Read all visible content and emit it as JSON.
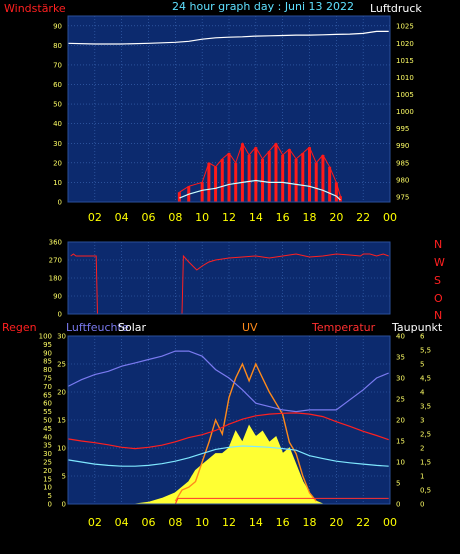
{
  "header": {
    "title": "24 hour graph day : Juni 13 2022",
    "left_label": "Windstärke",
    "right_label": "Luftdruck"
  },
  "legend_bottom": {
    "regen": "Regen",
    "luftfeuchte": "Luftfeuchte",
    "solar": "Solar",
    "uv": "UV",
    "temperatur": "Temperatur",
    "taupunkt": "Taupunkt"
  },
  "direction_labels": [
    "N",
    "W",
    "S",
    "O",
    "N"
  ],
  "colors": {
    "plot_bg": "#0c2a6e",
    "grid": "#3e6bb8",
    "pressure": "#ffffff",
    "wind_gust": "#ff1a1a",
    "wind_speed": "#ccffff",
    "direction": "#ff2020",
    "humidity": "#7a7af0",
    "solar": "#ffff33",
    "uv": "#ff8a1a",
    "temperature": "#ff2020",
    "dewpoint": "#7fe8ff",
    "rain": "#ff3030"
  },
  "chart_data": [
    {
      "type": "line",
      "title": "24 hour graph day : Juni 13 2022",
      "x_ticks": [
        "02",
        "04",
        "06",
        "08",
        "10",
        "12",
        "14",
        "16",
        "18",
        "20",
        "22",
        "00"
      ],
      "y_left": {
        "label": "Windstärke",
        "ticks": [
          0,
          10,
          20,
          30,
          40,
          50,
          60,
          70,
          80,
          90
        ],
        "lim": [
          0,
          95
        ]
      },
      "y_right": {
        "label": "Luftdruck",
        "ticks": [
          975,
          980,
          985,
          990,
          995,
          1000,
          1005,
          1010,
          1015,
          1020,
          1025
        ],
        "lim": [
          973.5,
          1028
        ]
      },
      "series": [
        {
          "axis": "right",
          "x": [
            0,
            2,
            4,
            6,
            8,
            9,
            10,
            11,
            12,
            13,
            14,
            15,
            16,
            17,
            18,
            19,
            20,
            21,
            22,
            23,
            23.9
          ],
          "y": [
            1020,
            1019.8,
            1019.8,
            1020,
            1020.3,
            1020.6,
            1021.2,
            1021.6,
            1021.8,
            1021.9,
            1022.1,
            1022.2,
            1022.3,
            1022.4,
            1022.4,
            1022.5,
            1022.6,
            1022.7,
            1022.9,
            1023.5,
            1023.5
          ]
        },
        {
          "axis": "left",
          "x": [
            8.3,
            9,
            10,
            10.5,
            11,
            11.5,
            12,
            12.5,
            13,
            13.5,
            14,
            14.5,
            15,
            15.5,
            16,
            16.5,
            17,
            17.5,
            18,
            18.5,
            19,
            19.5,
            20,
            20.3
          ],
          "y": [
            5,
            8,
            10,
            20,
            18,
            22,
            25,
            20,
            30,
            24,
            28,
            22,
            26,
            30,
            24,
            27,
            22,
            25,
            28,
            20,
            24,
            18,
            10,
            3
          ]
        },
        {
          "axis": "left",
          "x": [
            8.3,
            9,
            10,
            11,
            12,
            13,
            14,
            15,
            16,
            17,
            18,
            19,
            20,
            20.3
          ],
          "y": [
            2,
            4,
            6,
            7,
            9,
            10,
            11,
            10,
            10,
            9,
            8,
            6,
            3,
            1
          ]
        }
      ]
    },
    {
      "type": "line",
      "y_left": {
        "ticks": [
          0,
          90,
          180,
          270,
          360
        ],
        "lim": [
          0,
          360
        ]
      },
      "y_right": {
        "ticks": [
          "N",
          "W",
          "S",
          "O",
          "N"
        ]
      },
      "series": [
        {
          "x": [
            0.2,
            0.4,
            0.6,
            1.0,
            1.8,
            2.1,
            2.2,
            8.5,
            8.6,
            9.0,
            9.6,
            10.0,
            10.5,
            11.0,
            12.0,
            13.0,
            14.0,
            15.0,
            16.0,
            17.0,
            18.0,
            19.0,
            20.0,
            21.0,
            21.8,
            22.0,
            22.5,
            23.0,
            23.5,
            23.9
          ],
          "y": [
            290,
            300,
            290,
            290,
            290,
            290,
            0,
            0,
            290,
            260,
            220,
            240,
            260,
            270,
            280,
            285,
            290,
            280,
            290,
            300,
            285,
            290,
            300,
            295,
            290,
            300,
            300,
            290,
            300,
            290
          ]
        }
      ]
    },
    {
      "type": "line",
      "x_ticks": [
        "02",
        "04",
        "06",
        "08",
        "10",
        "12",
        "14",
        "16",
        "18",
        "20",
        "22",
        "00"
      ],
      "y_left": {
        "ticks": [
          0,
          5,
          10,
          15,
          20,
          25,
          30,
          35,
          40,
          45,
          50,
          55,
          60,
          65,
          70,
          75,
          80,
          85,
          90,
          95,
          100
        ],
        "lim": [
          0,
          100
        ]
      },
      "y_left2": {
        "ticks": [
          0,
          5,
          10,
          15,
          20,
          25,
          30
        ],
        "lim": [
          0,
          30
        ]
      },
      "y_right": {
        "ticks": [
          0,
          5,
          10,
          15,
          20,
          25,
          30,
          35,
          40
        ],
        "lim": [
          0,
          40
        ]
      },
      "y_right2": {
        "ticks": [
          "0",
          "0,5",
          "1",
          "1,5",
          "2",
          "2,5",
          "3",
          "3,5",
          "4",
          "4,5",
          "5",
          "5,5",
          "6"
        ],
        "lim": [
          0,
          6
        ]
      },
      "series": [
        {
          "name": "Luftfeuchte",
          "x": [
            0,
            1,
            2,
            3,
            4,
            5,
            6,
            7,
            8,
            9,
            10,
            11,
            12,
            13,
            14,
            15,
            16,
            17,
            18,
            19,
            20,
            21,
            22,
            23,
            23.9
          ],
          "y": [
            70,
            74,
            77,
            79,
            82,
            84,
            86,
            88,
            91,
            91,
            88,
            80,
            75,
            68,
            60,
            58,
            56,
            55,
            56,
            56,
            56,
            62,
            68,
            75,
            78
          ]
        },
        {
          "name": "Temperatur",
          "x": [
            0,
            1,
            2,
            3,
            4,
            5,
            6,
            7,
            8,
            9,
            10,
            11,
            12,
            13,
            14,
            15,
            16,
            17,
            18,
            19,
            20,
            21,
            22,
            23,
            23.9
          ],
          "y": [
            15.5,
            15,
            14.6,
            14.1,
            13.5,
            13.2,
            13.5,
            14,
            14.8,
            15.8,
            16.5,
            17.5,
            19,
            20.2,
            21,
            21.4,
            21.6,
            21.7,
            21.4,
            20.8,
            19.6,
            18.5,
            17.3,
            16.3,
            15.3
          ]
        },
        {
          "name": "Taupunkt",
          "x": [
            0,
            1,
            2,
            3,
            4,
            5,
            6,
            7,
            8,
            9,
            10,
            11,
            12,
            13,
            14,
            15,
            16,
            17,
            18,
            19,
            20,
            21,
            22,
            23,
            23.9
          ],
          "y": [
            10.5,
            10,
            9.5,
            9.2,
            9.0,
            9.0,
            9.2,
            9.6,
            10.2,
            11,
            12,
            13,
            13.5,
            13.8,
            13.7,
            13.5,
            13.2,
            12.8,
            11.5,
            10.8,
            10.2,
            9.8,
            9.5,
            9.2,
            9.0
          ]
        },
        {
          "name": "Solar",
          "x": [
            5,
            6,
            7,
            8,
            8.5,
            9,
            9.5,
            10,
            10.5,
            11,
            11.5,
            12,
            12.5,
            13,
            13.5,
            14,
            14.5,
            15,
            15.5,
            16,
            16.5,
            17,
            17.5,
            18,
            18.5,
            19
          ],
          "y": [
            0,
            0.3,
            1,
            2,
            3,
            4,
            6,
            7,
            8,
            9,
            9,
            10,
            13,
            11,
            14,
            12,
            13,
            11,
            12,
            9,
            10,
            7,
            4,
            2,
            0.5,
            0
          ]
        },
        {
          "name": "UV",
          "x": [
            8,
            8.5,
            9,
            9.5,
            10,
            10.5,
            11,
            11.5,
            12,
            12.5,
            13,
            13.5,
            14,
            14.5,
            15,
            15.5,
            16,
            16.5,
            17,
            17.5,
            18,
            18.5
          ],
          "y": [
            0.1,
            0.5,
            0.6,
            0.8,
            1.5,
            2.2,
            3.0,
            2.5,
            3.8,
            4.5,
            5.0,
            4.4,
            5.0,
            4.5,
            4.0,
            3.6,
            3.2,
            2.2,
            1.8,
            1.0,
            0.4,
            0.1
          ]
        },
        {
          "name": "Regen",
          "x": [
            0,
            8,
            8.2,
            21.5,
            23.9
          ],
          "y": [
            0,
            0,
            1.0,
            1.0,
            1.0
          ]
        }
      ]
    }
  ]
}
